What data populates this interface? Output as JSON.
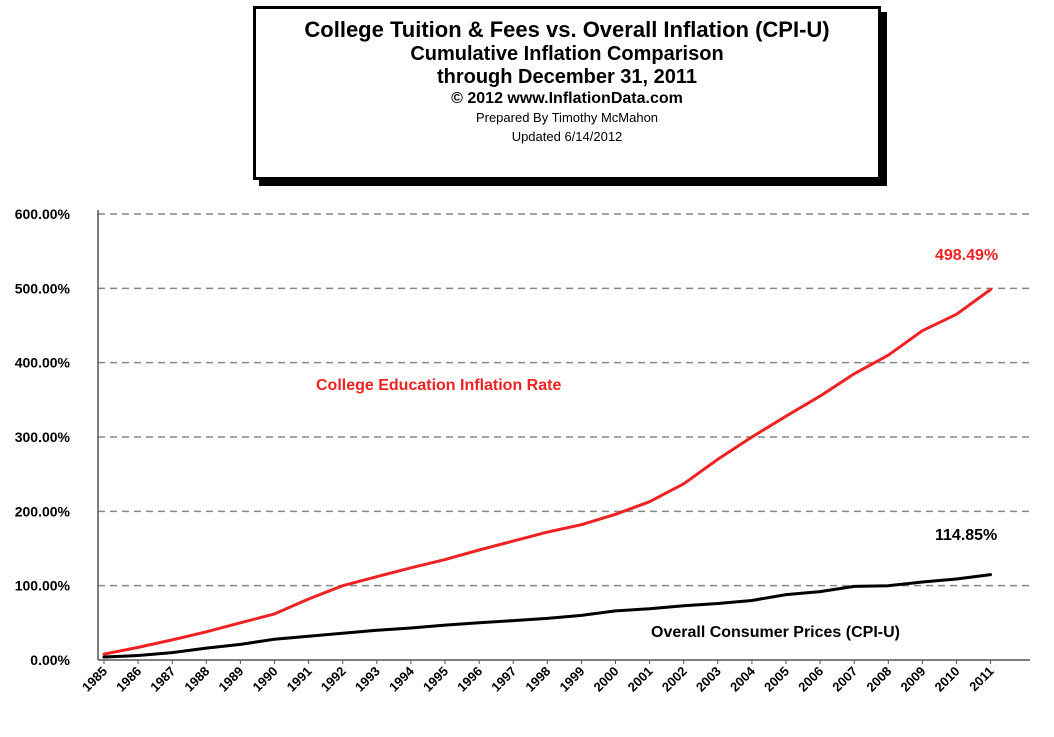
{
  "title_box": {
    "line1": "College  Tuition & Fees vs. Overall  Inflation  (CPI-U)",
    "line2": "Cumulative Inflation Comparison",
    "line3": "through December 31, 2011",
    "line4": "© 2012 www.InflationData.com",
    "line5": "Prepared  By Timothy  McMahon",
    "line6": "Updated  6/14/2012"
  },
  "colors": {
    "college": "#ee2222",
    "cpi": "#000000",
    "grid": "#888888"
  },
  "chart_data": {
    "type": "line",
    "x": [
      "1985",
      "1986",
      "1987",
      "1988",
      "1989",
      "1990",
      "1991",
      "1992",
      "1993",
      "1994",
      "1995",
      "1996",
      "1997",
      "1998",
      "1999",
      "2000",
      "2001",
      "2002",
      "2003",
      "2004",
      "2005",
      "2006",
      "2007",
      "2008",
      "2009",
      "2010",
      "2011"
    ],
    "ylim": [
      0,
      600
    ],
    "y_ticks": [
      0,
      100,
      200,
      300,
      400,
      500,
      600
    ],
    "y_tick_labels": [
      "0.00%",
      "100.00%",
      "200.00%",
      "300.00%",
      "400.00%",
      "500.00%",
      "600.00%"
    ],
    "grid": "horizontal-dashed",
    "series": [
      {
        "name": "College Education Inflation Rate",
        "color": "#ee2222",
        "values": [
          8,
          17,
          27,
          38,
          50,
          62,
          82,
          100,
          112,
          124,
          135,
          148,
          160,
          172,
          182,
          196,
          213,
          237,
          270,
          300,
          328,
          355,
          385,
          410,
          443,
          465,
          498.49
        ]
      },
      {
        "name": "Overall Consumer Prices (CPI-U)",
        "color": "#000000",
        "values": [
          4,
          6,
          10,
          16,
          21,
          28,
          32,
          36,
          40,
          43,
          47,
          50,
          53,
          56,
          60,
          66,
          69,
          73,
          76,
          80,
          88,
          92,
          99,
          100,
          105,
          109,
          114.85
        ]
      }
    ],
    "annotations": {
      "college_end": "498.49%",
      "cpi_end": "114.85%",
      "college_label": "College Education Inflation Rate",
      "cpi_label": "Overall  Consumer Prices (CPI-U)"
    }
  }
}
